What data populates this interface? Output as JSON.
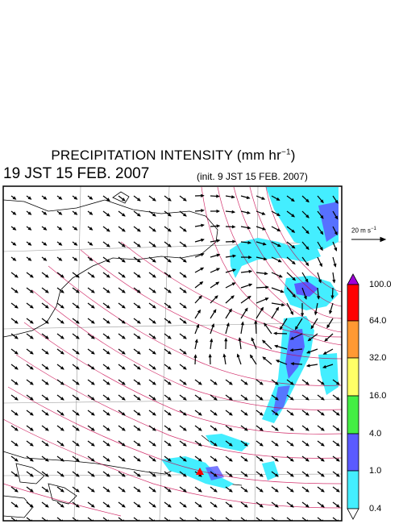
{
  "title": {
    "main": "PRECIPITATION INTENSITY (mm hr",
    "exponent": "−1",
    "close": ")"
  },
  "subtitle": "19 JST 15 FEB. 2007",
  "init_note": "(init. 9 JST 15 FEB. 2007)",
  "wind_scale": {
    "label": "20 m s",
    "exponent": "−1"
  },
  "colorbar": {
    "labels": [
      "100.0",
      "64.0",
      "32.0",
      "16.0",
      "4.0",
      "1.0",
      "0.4"
    ],
    "colors": [
      "#9f00d9",
      "#ff0000",
      "#ff9933",
      "#ffff66",
      "#44ee44",
      "#5a5aff",
      "#44eeff",
      "#ffffff"
    ]
  },
  "map": {
    "marker_color": "#ff0000",
    "streamline_color": "#c8004a",
    "precip_color": "#44eeff",
    "precip_heavy_color": "#5a5aff"
  }
}
